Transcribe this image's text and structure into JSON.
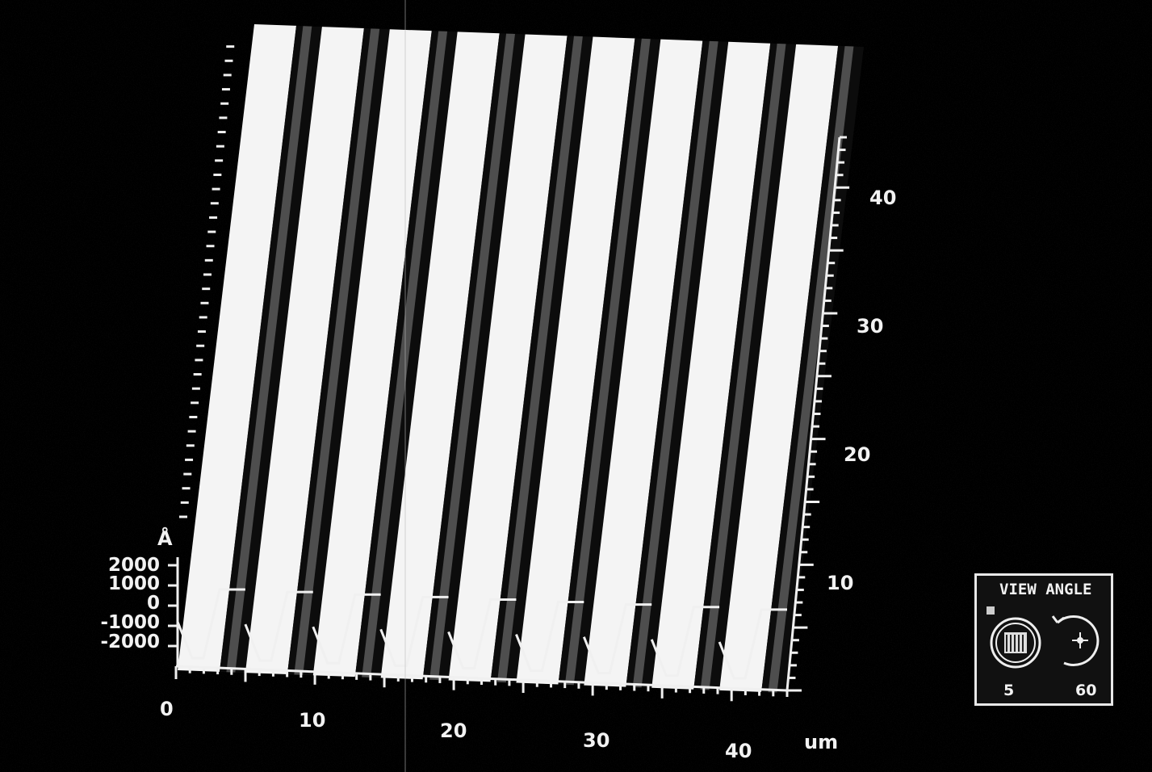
{
  "z_axis": {
    "unit": "Å",
    "ticks": [
      "2000",
      "1000",
      "0",
      "-1000",
      "-2000"
    ]
  },
  "x_axis": {
    "unit": "um",
    "ticks": [
      "0",
      "10",
      "20",
      "30",
      "40"
    ]
  },
  "y_axis": {
    "ticks": [
      "10",
      "20",
      "30",
      "40"
    ]
  },
  "view_angle": {
    "title": "VIEW ANGLE",
    "values": [
      "5",
      "60"
    ]
  },
  "colors": {
    "background": "#000000",
    "surface_high": "#f4f4f4",
    "surface_low": "#0c0c0c",
    "axis": "#f0f0f0"
  },
  "icons": [
    "view-angle-dial-icon",
    "rotation-arrow-icon"
  ]
}
